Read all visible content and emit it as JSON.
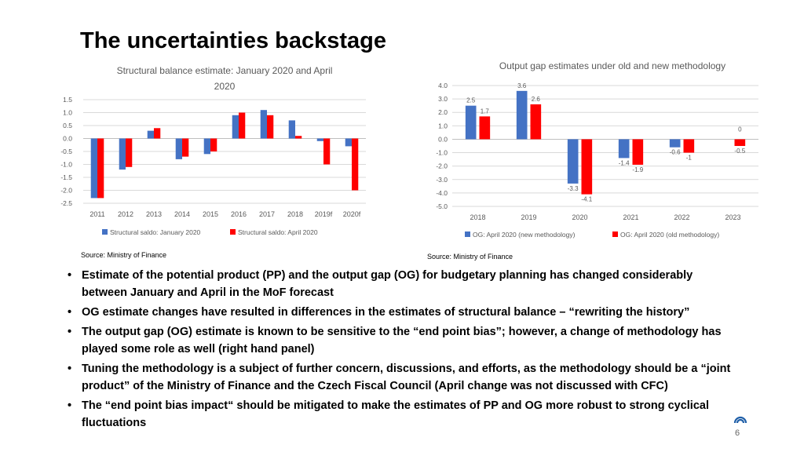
{
  "title": "The uncertainties backstage",
  "colors": {
    "blue": "#4472c4",
    "red": "#ff0000",
    "grid": "#d9d9d9",
    "text": "#595959",
    "logo": "#1f5fa8"
  },
  "chart_data": [
    {
      "id": "left",
      "type": "bar",
      "title": "Structural balance estimate: January 2020 and April 2020",
      "title_lines": [
        "Structural balance estimate: January 2020 and April",
        "2020"
      ],
      "categories": [
        "2011",
        "2012",
        "2013",
        "2014",
        "2015",
        "2016",
        "2017",
        "2018",
        "2019f",
        "2020f"
      ],
      "series": [
        {
          "name": "Structural saldo: January 2020",
          "color": "#4472c4",
          "values": [
            -2.3,
            -1.2,
            0.3,
            -0.8,
            -0.6,
            0.9,
            1.1,
            0.7,
            -0.1,
            -0.3
          ]
        },
        {
          "name": "Structural saldo: April 2020",
          "color": "#ff0000",
          "values": [
            -2.3,
            -1.1,
            0.4,
            -0.7,
            -0.5,
            1.0,
            0.9,
            0.1,
            -1.0,
            -2.0
          ]
        }
      ],
      "ylim": [
        -2.5,
        1.5
      ],
      "yticks": [
        "1.5",
        "1.0",
        "0.5",
        "0.0",
        "-0.5",
        "-1.0",
        "-1.5",
        "-2.0",
        "-2.5"
      ],
      "grid": true,
      "legend": "bottom"
    },
    {
      "id": "right",
      "type": "bar",
      "title": "Output gap estimates under old and new methodology",
      "title_lines": [
        "Output gap estimates under old and new methodology"
      ],
      "categories": [
        "2018",
        "2019",
        "2020",
        "2021",
        "2022",
        "2023"
      ],
      "series": [
        {
          "name": "OG: April 2020 (new  methodology)",
          "color": "#4472c4",
          "values": [
            2.5,
            3.6,
            -3.3,
            -1.4,
            -0.6,
            null
          ],
          "labels": [
            "2.5",
            "3.6",
            "-3.3",
            "-1.4",
            "-0.6",
            ""
          ]
        },
        {
          "name": "OG: April 2020 (old methodology)",
          "color": "#ff0000",
          "values": [
            1.7,
            2.6,
            -4.1,
            -1.9,
            -1,
            -0.5
          ],
          "labels": [
            "1.7",
            "2.6",
            "-4.1",
            "-1.9",
            "-1",
            "-0.5"
          ]
        }
      ],
      "extra_labels": [
        {
          "category": "2023",
          "text": "0"
        }
      ],
      "ylim": [
        -5.0,
        4.0
      ],
      "yticks": [
        "4.0",
        "3.0",
        "2.0",
        "1.0",
        "0.0",
        "-1.0",
        "-2.0",
        "-3.0",
        "-4.0",
        "-5.0"
      ],
      "grid": true,
      "legend": "bottom"
    }
  ],
  "sources": {
    "left": "Source: Ministry of Finance",
    "right": "Source: Ministry of Finance"
  },
  "bullets": [
    "Estimate of the potential product (PP) and the output gap (OG) for budgetary planning has changed considerably between January and April in the MoF forecast",
    "OG estimate changes have resulted in differences in the estimates of structural balance – “rewriting the history”",
    "The output gap (OG) estimate is known to be sensitive to the “end point bias”; however, a change of methodology has played some role as well (right hand panel)",
    "Tuning the methodology is a subject of further concern, discussions, and efforts, as the methodology should be a “joint product” of the Ministry of Finance and the Czech Fiscal Council (April change was not discussed with CFC)",
    "The “end point bias impact“ should be mitigated to make the estimates of PP and OG more robust to strong cyclical fluctuations"
  ],
  "page_number": "6"
}
